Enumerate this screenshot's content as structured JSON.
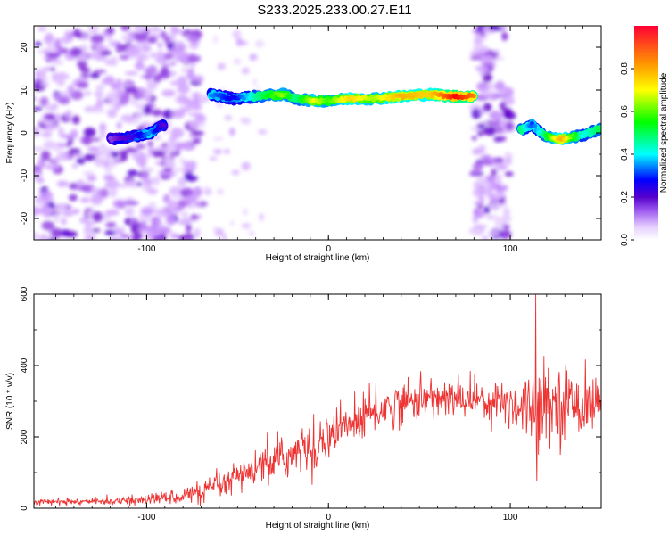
{
  "title": "S233.2025.233.00.27.E11",
  "chart_data": [
    {
      "type": "heatmap",
      "xlabel": "Height of straight line (km)",
      "ylabel": "Frequency (Hz)",
      "xlim": [
        -162,
        150
      ],
      "ylim": [
        -25,
        25
      ],
      "xticks": [
        -100,
        0,
        100
      ],
      "yticks": [
        -20,
        -10,
        0,
        10,
        20
      ],
      "xtick_labels": [
        "-100",
        "0",
        "100"
      ],
      "ytick_labels": [
        "-20",
        "-10",
        "0",
        "10",
        "20"
      ],
      "colorbar": {
        "label": "Normalized spectral amplitude",
        "range": [
          0,
          1
        ],
        "ticks": [
          0,
          0.2,
          0.4,
          0.6,
          0.8
        ],
        "tick_labels": [
          "0.0",
          "0.2",
          "0.4",
          "0.6",
          "0.8"
        ],
        "colors": [
          "#ffffff",
          "#cc99ff",
          "#6600cc",
          "#0000ff",
          "#00ffff",
          "#00ff00",
          "#ffff00",
          "#ff9900",
          "#ff0000"
        ]
      },
      "noise_bands_km": [
        [
          -162,
          -70
        ],
        [
          80,
          100
        ]
      ],
      "ridge": [
        {
          "x": -120,
          "y": -1.5,
          "amp": 0.2
        },
        {
          "x": -108,
          "y": -1,
          "amp": 0.3
        },
        {
          "x": -98,
          "y": 0,
          "amp": 0.45
        },
        {
          "x": -90,
          "y": 2,
          "amp": 0.25
        },
        {
          "x": -65,
          "y": 9,
          "amp": 0.45
        },
        {
          "x": -52,
          "y": 8,
          "amp": 0.35
        },
        {
          "x": -40,
          "y": 8.5,
          "amp": 0.55
        },
        {
          "x": -25,
          "y": 9,
          "amp": 0.7
        },
        {
          "x": -18,
          "y": 8,
          "amp": 0.55
        },
        {
          "x": -8,
          "y": 7.5,
          "amp": 0.75
        },
        {
          "x": 0,
          "y": 7.5,
          "amp": 0.65
        },
        {
          "x": 12,
          "y": 8,
          "amp": 0.8
        },
        {
          "x": 25,
          "y": 8,
          "amp": 0.7
        },
        {
          "x": 40,
          "y": 8.5,
          "amp": 0.85
        },
        {
          "x": 55,
          "y": 9,
          "amp": 0.8
        },
        {
          "x": 70,
          "y": 8.5,
          "amp": 1.0
        },
        {
          "x": 80,
          "y": 8.5,
          "amp": 0.9
        },
        {
          "x": 105,
          "y": 0.5,
          "amp": 0.6
        },
        {
          "x": 112,
          "y": 2,
          "amp": 0.4
        },
        {
          "x": 118,
          "y": -0.5,
          "amp": 0.55
        },
        {
          "x": 128,
          "y": -1.5,
          "amp": 0.85
        },
        {
          "x": 140,
          "y": -0.5,
          "amp": 0.5
        },
        {
          "x": 150,
          "y": 1,
          "amp": 0.6
        }
      ]
    },
    {
      "type": "line",
      "xlabel": "Height of straight line (km)",
      "ylabel": "SNR (10 * v/v)",
      "xlim": [
        -162,
        150
      ],
      "ylim": [
        0,
        600
      ],
      "xticks": [
        -100,
        0,
        100
      ],
      "yticks": [
        0,
        200,
        400,
        600
      ],
      "xtick_labels": [
        "-100",
        "0",
        "100"
      ],
      "ytick_labels": [
        "0",
        "200",
        "400",
        "600"
      ],
      "color": "#ee3333",
      "series": [
        {
          "name": "SNR",
          "x": [
            -162,
            -150,
            -140,
            -130,
            -120,
            -110,
            -100,
            -90,
            -80,
            -70,
            -60,
            -50,
            -40,
            -30,
            -20,
            -10,
            0,
            10,
            20,
            30,
            40,
            50,
            60,
            70,
            80,
            90,
            100,
            105,
            110,
            113,
            115,
            117,
            120,
            125,
            130,
            135,
            140,
            145,
            150
          ],
          "mean": [
            18,
            18,
            18,
            19,
            20,
            21,
            24,
            30,
            35,
            45,
            60,
            85,
            110,
            130,
            150,
            175,
            200,
            230,
            255,
            280,
            295,
            305,
            310,
            305,
            310,
            300,
            295,
            290,
            290,
            285,
            295,
            300,
            300,
            295,
            300,
            295,
            290,
            295,
            300
          ],
          "noise": [
            6,
            6,
            6,
            7,
            8,
            9,
            11,
            14,
            18,
            22,
            28,
            33,
            38,
            42,
            45,
            48,
            50,
            50,
            48,
            45,
            42,
            40,
            38,
            38,
            40,
            45,
            55,
            60,
            70,
            80,
            80,
            75,
            70,
            70,
            70,
            65,
            60,
            55,
            50
          ]
        }
      ],
      "annotations": [
        {
          "x": 114,
          "y": 600,
          "note": "spike"
        },
        {
          "x": 114,
          "y": 75,
          "note": "dip"
        }
      ]
    }
  ]
}
